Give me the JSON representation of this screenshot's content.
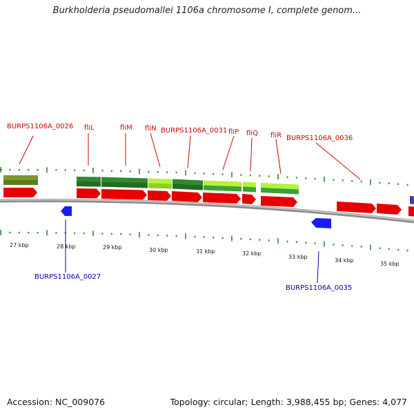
{
  "title": "Burkholderia pseudomallei 1106a chromosome I, complete genom...",
  "footer": {
    "accession": "Accession: NC_009076",
    "summary": "Topology: circular; Length: 3,988,455 bp; Genes: 4,077"
  },
  "colors": {
    "forward_cds": "#e60000",
    "reverse_cds": "#1a1aff",
    "gene_green": "#2e8b2e",
    "gene_lime": "#b5f23a",
    "olive": "#7a9a2a",
    "backbone": "#8c8c8c",
    "tick": "#2c8a2c",
    "label_red": "#cc0000",
    "label_blue": "#0000aa"
  },
  "scale_labels": [
    "27 kbp",
    "28 kbp",
    "29 kbp",
    "30 kbp",
    "31 kbp",
    "32 kbp",
    "33 kbp",
    "34 kbp",
    "35 kbp"
  ],
  "top_labels": [
    "BURPS1106A_0026",
    "fliL",
    "fliM",
    "fliN",
    "BURPS1106A_0031",
    "fliP",
    "fliQ",
    "fliR",
    "BURPS1106A_0036"
  ],
  "bottom_labels": [
    "BURPS1106A_0027",
    "BURPS1106A_0035"
  ]
}
